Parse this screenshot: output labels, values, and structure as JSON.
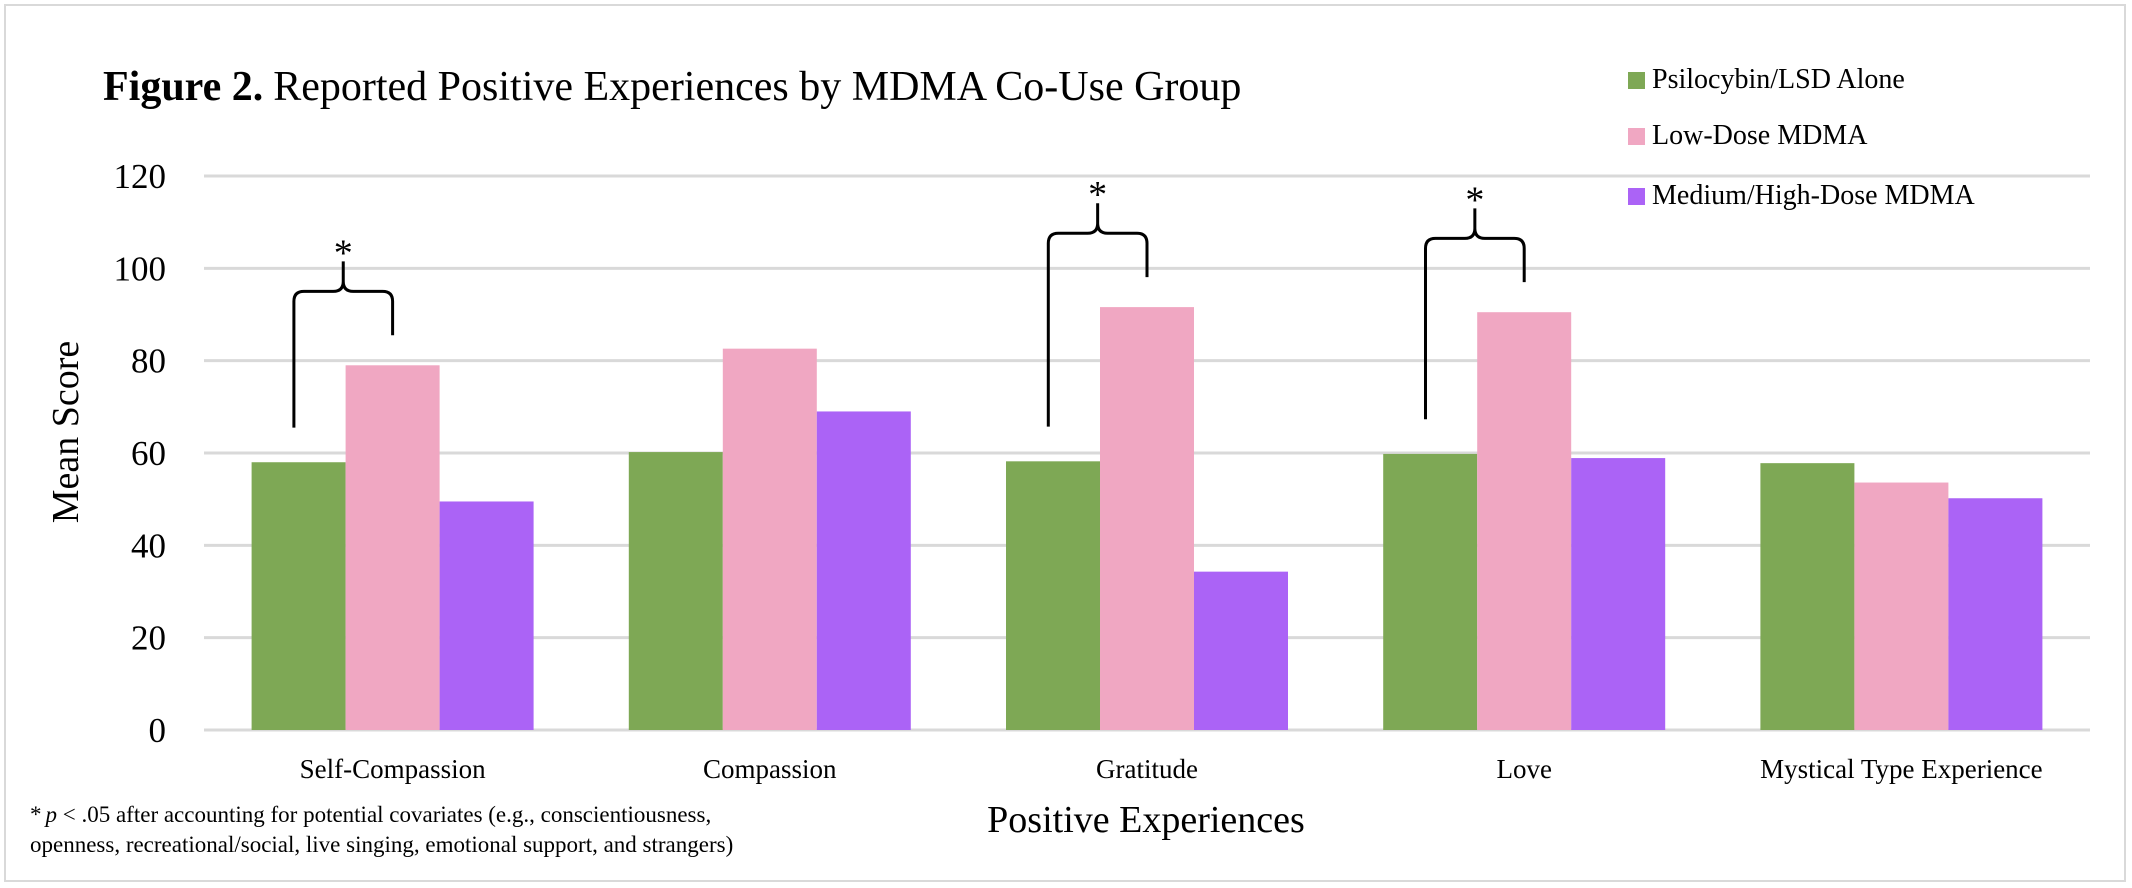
{
  "chart_data": {
    "type": "bar",
    "title_prefix": "Figure 2.",
    "title": "Reported Positive Experiences by MDMA Co-Use Group",
    "xlabel": "Positive Experiences",
    "ylabel": "Mean Score",
    "ylim": [
      0,
      120
    ],
    "yticks": [
      0,
      20,
      40,
      60,
      80,
      100,
      120
    ],
    "grid": true,
    "legend_position": "top-right",
    "categories": [
      "Self-Compassion",
      "Compassion",
      "Gratitude",
      "Love",
      "Mystical Type Experience"
    ],
    "series": [
      {
        "name": "Psilocybin/LSD Alone",
        "color": "#7ea855",
        "values": [
          58.0,
          60.2,
          58.2,
          59.8,
          57.8
        ]
      },
      {
        "name": "Low-Dose MDMA",
        "color": "#f0a7c2",
        "values": [
          79.0,
          82.6,
          91.6,
          90.5,
          53.6
        ]
      },
      {
        "name": "Medium/High-Dose MDMA",
        "color": "#ab63f6",
        "values": [
          49.5,
          69.0,
          34.3,
          58.9,
          50.2
        ]
      }
    ],
    "significance": [
      {
        "category": "Self-Compassion",
        "label": "*"
      },
      {
        "category": "Gratitude",
        "label": "*"
      },
      {
        "category": "Love",
        "label": "*"
      }
    ],
    "footnote": {
      "marker": "*",
      "p_symbol": "p",
      "line1_rest": " < .05 after accounting for potential covariates (e.g., conscientiousness,",
      "line2": "openness, recreational/social, live singing, emotional support, and strangers)"
    }
  }
}
